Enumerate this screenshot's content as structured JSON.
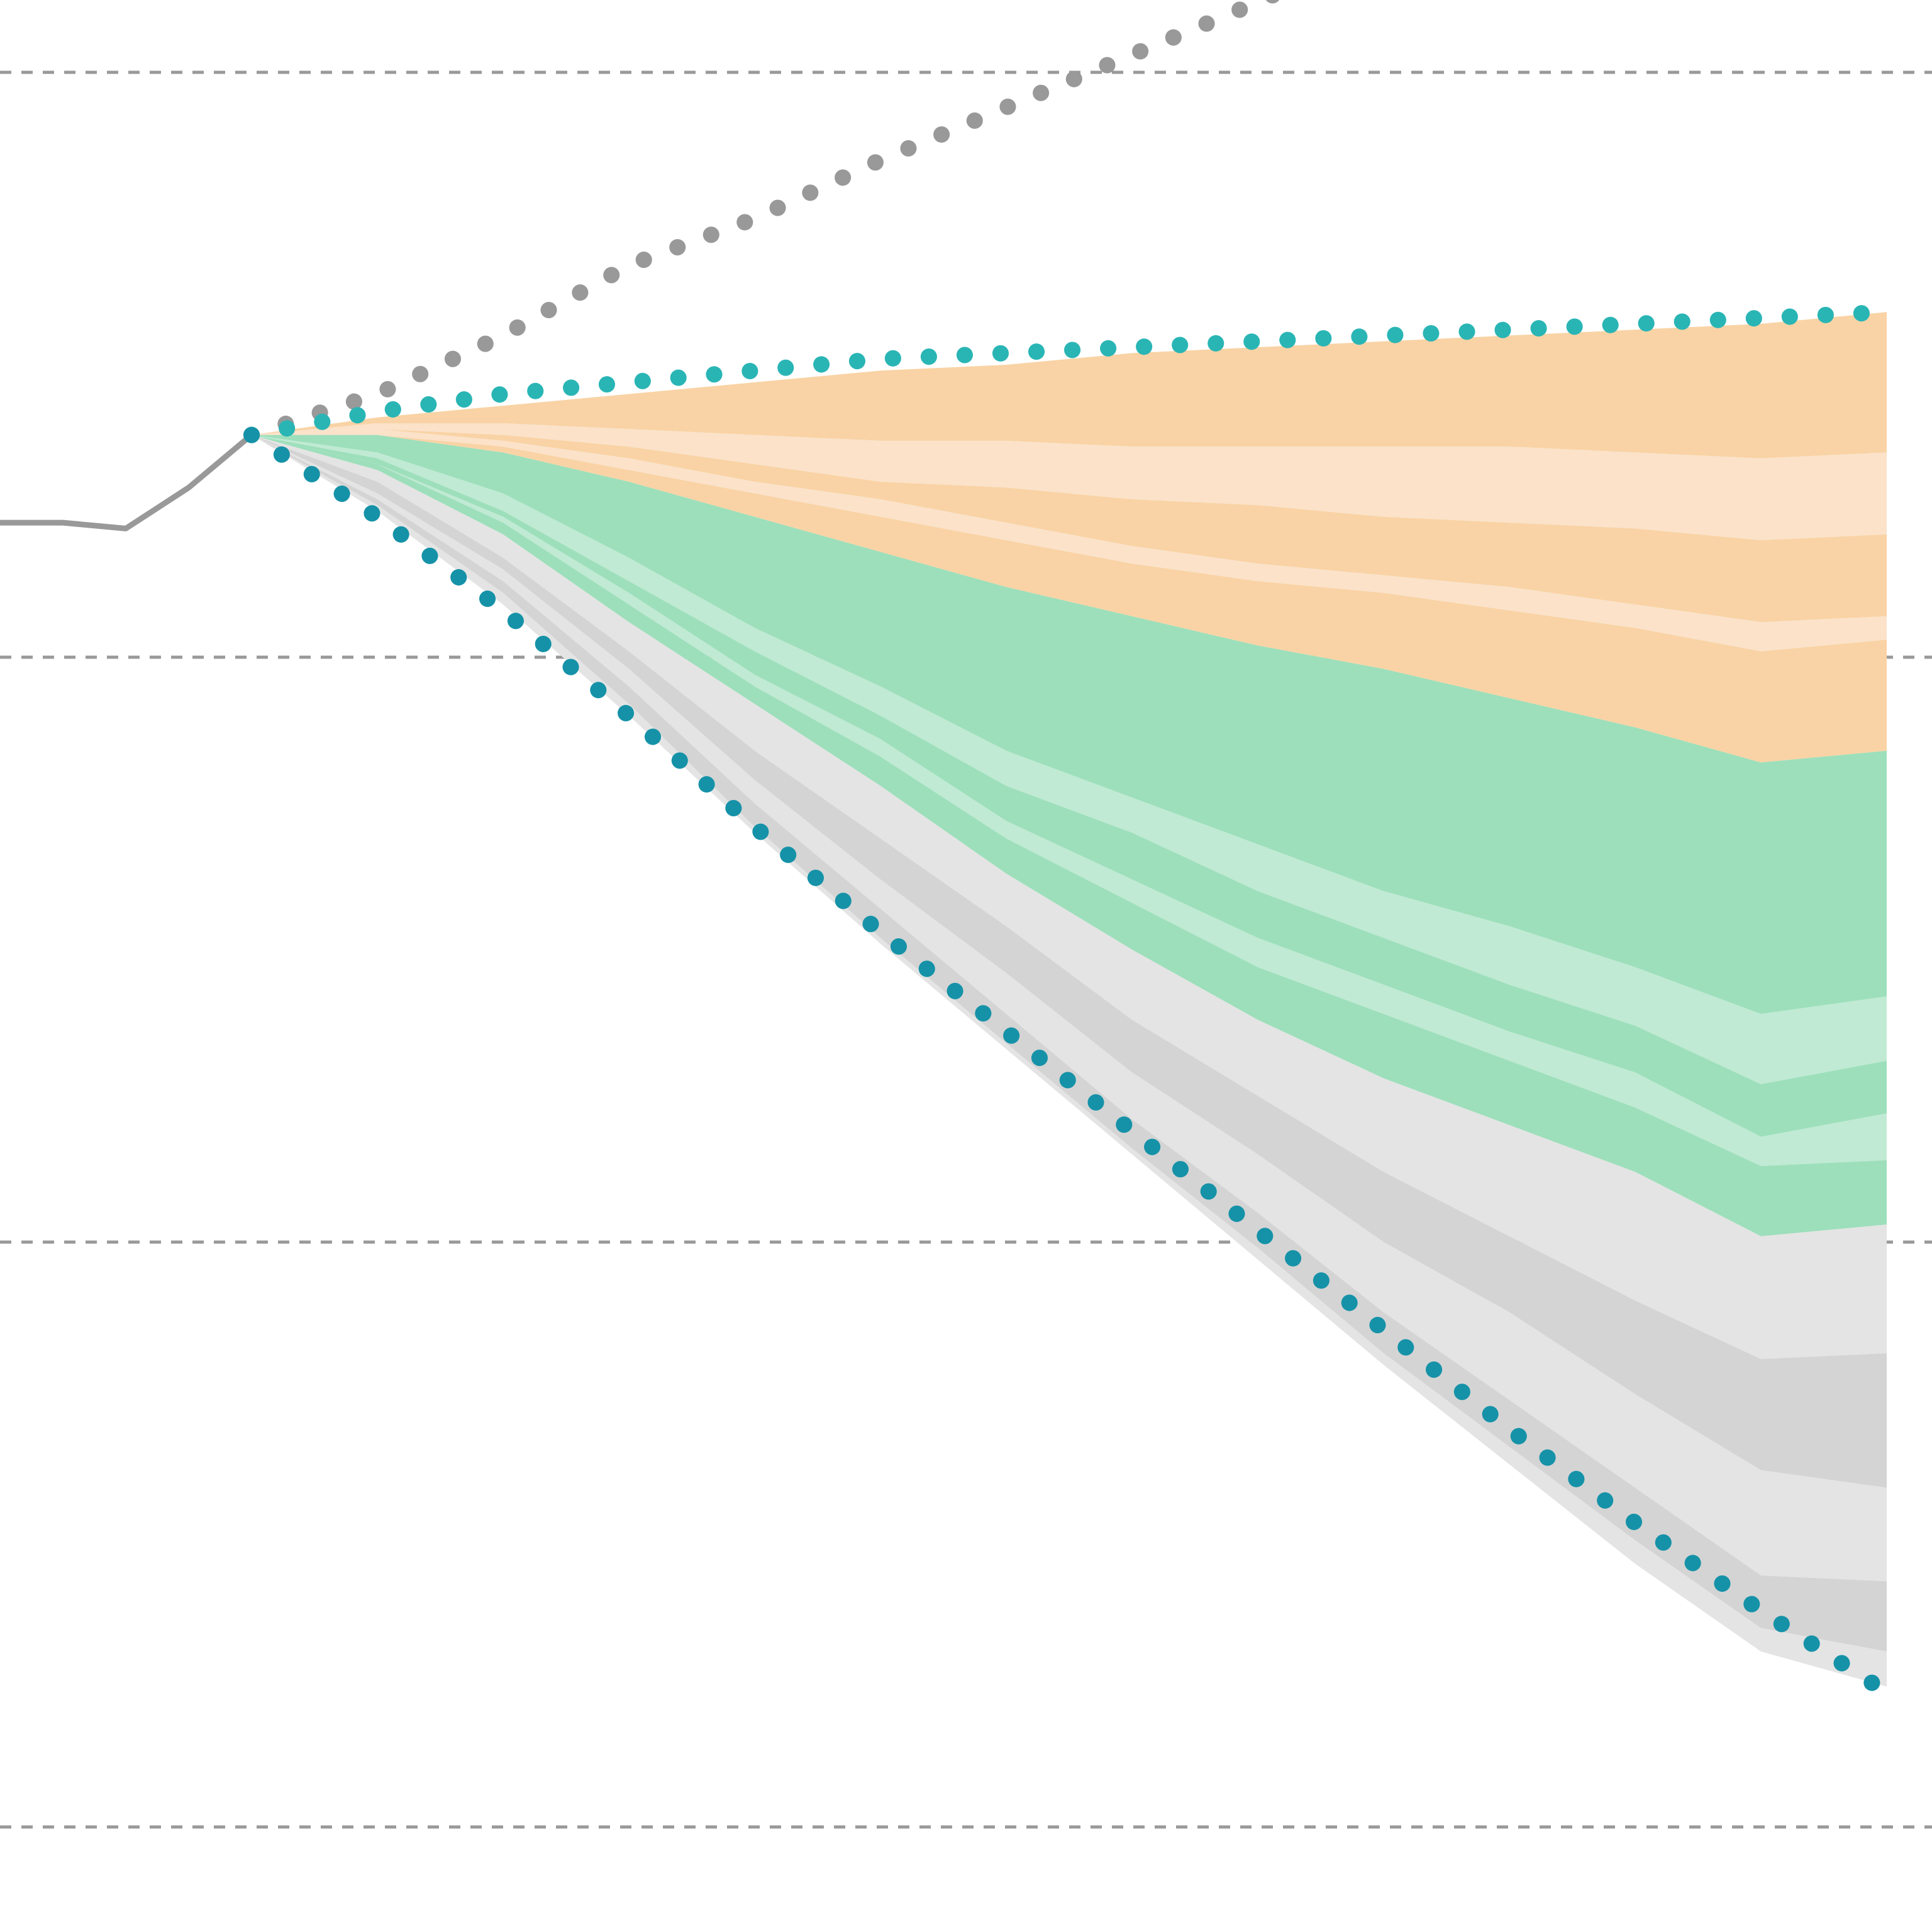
{
  "chart_data": {
    "type": "area",
    "title": "",
    "xlabel": "",
    "ylabel": "",
    "grid": true,
    "x_range": [
      0,
      30.5
    ],
    "y_range": [
      -3.2,
      0.05
    ],
    "gridlines_y": [
      0,
      -1,
      -2,
      -3
    ],
    "colors": {
      "history": "#999999",
      "gray_path": "#999999",
      "teal_path": "#2ab5b5",
      "blue_path": "#1592a8",
      "orange_dark": "#f9d3a5",
      "orange_light": "#fbe2c9",
      "green_dark": "#9ddfbb",
      "green_light": "#c0ead4",
      "gray_dark": "#d4d4d4",
      "gray_light": "#e4e4e4",
      "gridline": "#999999"
    },
    "history": {
      "x": [
        0,
        1,
        2,
        3,
        4
      ],
      "y": [
        -0.77,
        -0.77,
        -0.78,
        -0.71,
        -0.62
      ]
    },
    "projection_x": [
      4,
      6,
      8,
      10,
      12,
      14,
      16,
      18,
      20,
      22,
      24,
      26,
      28,
      30
    ],
    "dotted_paths": [
      {
        "id": "gray",
        "y": [
          -0.62,
          -0.55,
          -0.45,
          -0.33,
          -0.25,
          -0.15,
          -0.06,
          0.03,
          0.12,
          0.22,
          0.32,
          0.42,
          0.52,
          0.62
        ]
      },
      {
        "id": "teal",
        "y": [
          -0.62,
          -0.58,
          -0.55,
          -0.53,
          -0.51,
          -0.49,
          -0.48,
          -0.47,
          -0.46,
          -0.45,
          -0.44,
          -0.43,
          -0.42,
          -0.41
        ]
      },
      {
        "id": "blue",
        "y": [
          -0.62,
          -0.76,
          -0.92,
          -1.1,
          -1.29,
          -1.47,
          -1.64,
          -1.81,
          -1.98,
          -2.15,
          -2.32,
          -2.48,
          -2.63,
          -2.77
        ]
      }
    ],
    "stacked_areas": [
      {
        "id": "orange_dark_1",
        "color_key": "orange_dark",
        "upper": [
          -0.62,
          -0.59,
          -0.57,
          -0.55,
          -0.53,
          -0.51,
          -0.5,
          -0.48,
          -0.47,
          -0.46,
          -0.45,
          -0.44,
          -0.43,
          -0.41
        ],
        "lower": [
          -0.62,
          -0.6,
          -0.6,
          -0.61,
          -0.62,
          -0.63,
          -0.63,
          -0.64,
          -0.64,
          -0.64,
          -0.64,
          -0.65,
          -0.66,
          -0.65
        ]
      },
      {
        "id": "orange_light_1",
        "color_key": "orange_light",
        "upper": [
          -0.62,
          -0.6,
          -0.6,
          -0.61,
          -0.62,
          -0.63,
          -0.63,
          -0.64,
          -0.64,
          -0.64,
          -0.64,
          -0.65,
          -0.66,
          -0.65
        ],
        "lower": [
          -0.62,
          -0.61,
          -0.62,
          -0.64,
          -0.67,
          -0.7,
          -0.71,
          -0.73,
          -0.74,
          -0.76,
          -0.77,
          -0.78,
          -0.8,
          -0.79
        ]
      },
      {
        "id": "orange_dark_2",
        "color_key": "orange_dark",
        "upper": [
          -0.62,
          -0.61,
          -0.62,
          -0.64,
          -0.67,
          -0.7,
          -0.71,
          -0.73,
          -0.74,
          -0.76,
          -0.77,
          -0.78,
          -0.8,
          -0.79
        ],
        "lower": [
          -0.62,
          -0.61,
          -0.63,
          -0.66,
          -0.7,
          -0.73,
          -0.77,
          -0.81,
          -0.84,
          -0.86,
          -0.88,
          -0.91,
          -0.94,
          -0.93
        ]
      },
      {
        "id": "orange_light_2",
        "color_key": "orange_light",
        "upper": [
          -0.62,
          -0.61,
          -0.63,
          -0.66,
          -0.7,
          -0.73,
          -0.77,
          -0.81,
          -0.84,
          -0.86,
          -0.88,
          -0.91,
          -0.94,
          -0.93
        ],
        "lower": [
          -0.62,
          -0.62,
          -0.64,
          -0.68,
          -0.72,
          -0.76,
          -0.8,
          -0.84,
          -0.87,
          -0.89,
          -0.92,
          -0.95,
          -0.99,
          -0.97
        ]
      },
      {
        "id": "orange_dark_3",
        "color_key": "orange_dark",
        "upper": [
          -0.62,
          -0.62,
          -0.64,
          -0.68,
          -0.72,
          -0.76,
          -0.8,
          -0.84,
          -0.87,
          -0.89,
          -0.92,
          -0.95,
          -0.99,
          -0.97
        ],
        "lower": [
          -0.62,
          -0.62,
          -0.65,
          -0.7,
          -0.76,
          -0.82,
          -0.88,
          -0.93,
          -0.98,
          -1.02,
          -1.07,
          -1.12,
          -1.18,
          -1.16
        ]
      },
      {
        "id": "green_dark_1",
        "color_key": "green_dark",
        "upper": [
          -0.62,
          -0.62,
          -0.65,
          -0.7,
          -0.76,
          -0.82,
          -0.88,
          -0.93,
          -0.98,
          -1.02,
          -1.07,
          -1.12,
          -1.18,
          -1.16
        ],
        "lower": [
          -0.62,
          -0.65,
          -0.72,
          -0.83,
          -0.95,
          -1.05,
          -1.16,
          -1.24,
          -1.32,
          -1.4,
          -1.46,
          -1.53,
          -1.61,
          -1.58
        ]
      },
      {
        "id": "green_light_1",
        "color_key": "green_light",
        "upper": [
          -0.62,
          -0.65,
          -0.72,
          -0.83,
          -0.95,
          -1.05,
          -1.16,
          -1.24,
          -1.32,
          -1.4,
          -1.46,
          -1.53,
          -1.61,
          -1.58
        ],
        "lower": [
          -0.62,
          -0.66,
          -0.75,
          -0.87,
          -0.99,
          -1.1,
          -1.22,
          -1.3,
          -1.4,
          -1.48,
          -1.56,
          -1.63,
          -1.73,
          -1.69
        ]
      },
      {
        "id": "green_dark_2",
        "color_key": "green_dark",
        "upper": [
          -0.62,
          -0.66,
          -0.75,
          -0.87,
          -0.99,
          -1.1,
          -1.22,
          -1.3,
          -1.4,
          -1.48,
          -1.56,
          -1.63,
          -1.73,
          -1.69
        ],
        "lower": [
          -0.62,
          -0.67,
          -0.76,
          -0.89,
          -1.03,
          -1.14,
          -1.28,
          -1.38,
          -1.48,
          -1.56,
          -1.64,
          -1.71,
          -1.82,
          -1.78
        ]
      },
      {
        "id": "green_light_2",
        "color_key": "green_light",
        "upper": [
          -0.62,
          -0.67,
          -0.76,
          -0.89,
          -1.03,
          -1.14,
          -1.28,
          -1.38,
          -1.48,
          -1.56,
          -1.64,
          -1.71,
          -1.82,
          -1.78
        ],
        "lower": [
          -0.62,
          -0.67,
          -0.77,
          -0.91,
          -1.05,
          -1.17,
          -1.31,
          -1.42,
          -1.53,
          -1.61,
          -1.69,
          -1.77,
          -1.87,
          -1.86
        ]
      },
      {
        "id": "green_dark_3",
        "color_key": "green_dark",
        "upper": [
          -0.62,
          -0.67,
          -0.77,
          -0.91,
          -1.05,
          -1.17,
          -1.31,
          -1.42,
          -1.53,
          -1.61,
          -1.69,
          -1.77,
          -1.87,
          -1.86
        ],
        "lower": [
          -0.62,
          -0.68,
          -0.79,
          -0.94,
          -1.08,
          -1.22,
          -1.37,
          -1.5,
          -1.62,
          -1.72,
          -1.8,
          -1.88,
          -1.99,
          -1.97
        ]
      },
      {
        "id": "gray_light_1",
        "color_key": "gray_light",
        "upper": [
          -0.62,
          -0.68,
          -0.79,
          -0.94,
          -1.08,
          -1.22,
          -1.37,
          -1.5,
          -1.62,
          -1.72,
          -1.8,
          -1.88,
          -1.99,
          -1.97
        ],
        "lower": [
          -0.62,
          -0.7,
          -0.83,
          -0.99,
          -1.16,
          -1.31,
          -1.46,
          -1.62,
          -1.75,
          -1.88,
          -1.99,
          -2.1,
          -2.2,
          -2.19
        ]
      },
      {
        "id": "gray_dark_1",
        "color_key": "gray_dark",
        "upper": [
          -0.62,
          -0.7,
          -0.83,
          -0.99,
          -1.16,
          -1.31,
          -1.46,
          -1.62,
          -1.75,
          -1.88,
          -1.99,
          -2.1,
          -2.2,
          -2.19
        ],
        "lower": [
          -0.62,
          -0.72,
          -0.85,
          -1.02,
          -1.21,
          -1.38,
          -1.54,
          -1.71,
          -1.85,
          -2.0,
          -2.12,
          -2.26,
          -2.39,
          -2.42
        ]
      },
      {
        "id": "gray_light_2",
        "color_key": "gray_light",
        "upper": [
          -0.62,
          -0.72,
          -0.85,
          -1.02,
          -1.21,
          -1.38,
          -1.54,
          -1.71,
          -1.85,
          -2.0,
          -2.12,
          -2.26,
          -2.39,
          -2.42
        ],
        "lower": [
          -0.62,
          -0.73,
          -0.87,
          -1.05,
          -1.25,
          -1.43,
          -1.61,
          -1.79,
          -1.95,
          -2.12,
          -2.27,
          -2.42,
          -2.57,
          -2.58
        ]
      },
      {
        "id": "gray_dark_2",
        "color_key": "gray_dark",
        "upper": [
          -0.62,
          -0.73,
          -0.87,
          -1.05,
          -1.25,
          -1.43,
          -1.61,
          -1.79,
          -1.95,
          -2.12,
          -2.27,
          -2.42,
          -2.57,
          -2.58
        ],
        "lower": [
          -0.62,
          -0.74,
          -0.89,
          -1.08,
          -1.29,
          -1.48,
          -1.66,
          -1.84,
          -2.01,
          -2.19,
          -2.35,
          -2.51,
          -2.66,
          -2.7
        ]
      },
      {
        "id": "gray_light_3",
        "color_key": "gray_light",
        "upper": [
          -0.62,
          -0.74,
          -0.89,
          -1.08,
          -1.29,
          -1.48,
          -1.66,
          -1.84,
          -2.01,
          -2.19,
          -2.35,
          -2.51,
          -2.66,
          -2.7
        ],
        "lower": [
          -0.62,
          -0.75,
          -0.91,
          -1.1,
          -1.3,
          -1.49,
          -1.67,
          -1.85,
          -2.03,
          -2.21,
          -2.38,
          -2.55,
          -2.7,
          -2.76
        ]
      }
    ]
  }
}
